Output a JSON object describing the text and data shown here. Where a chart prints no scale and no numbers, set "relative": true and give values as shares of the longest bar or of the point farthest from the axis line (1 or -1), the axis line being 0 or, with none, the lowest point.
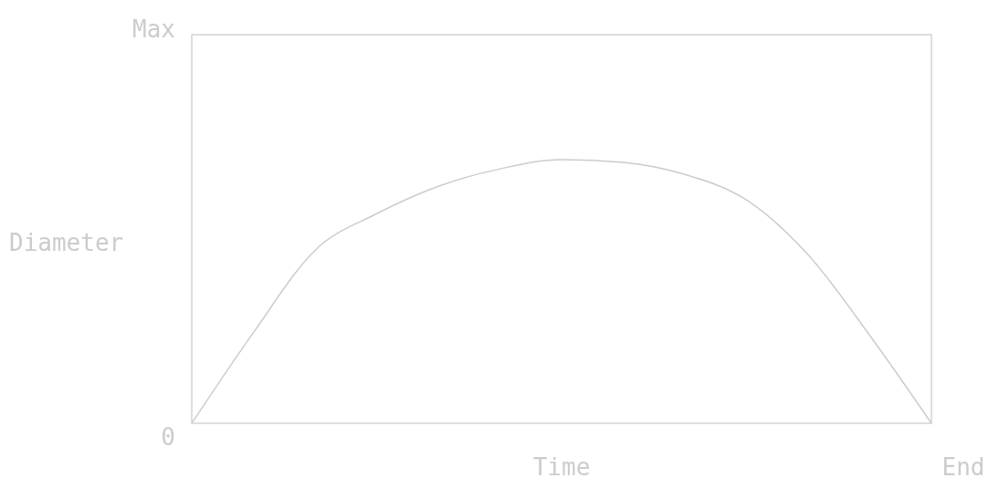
{
  "chart_data": {
    "type": "line",
    "relative": true,
    "xlabel": "Time",
    "ylabel": "Diameter",
    "categories": [
      null,
      null,
      null,
      null,
      null,
      null,
      null,
      null,
      null,
      null,
      null,
      null,
      null
    ],
    "series": [
      {
        "color": "#cccccc",
        "values": [
          0,
          0.344,
          0.656,
          0.795,
          0.899,
          0.965,
          1,
          0.99,
          0.944,
          0.847,
          0.639,
          0.333,
          0
        ]
      }
    ],
    "annotations": [
      "Max",
      "0",
      "End"
    ],
    "marker": "none",
    "line_style": "solid"
  }
}
